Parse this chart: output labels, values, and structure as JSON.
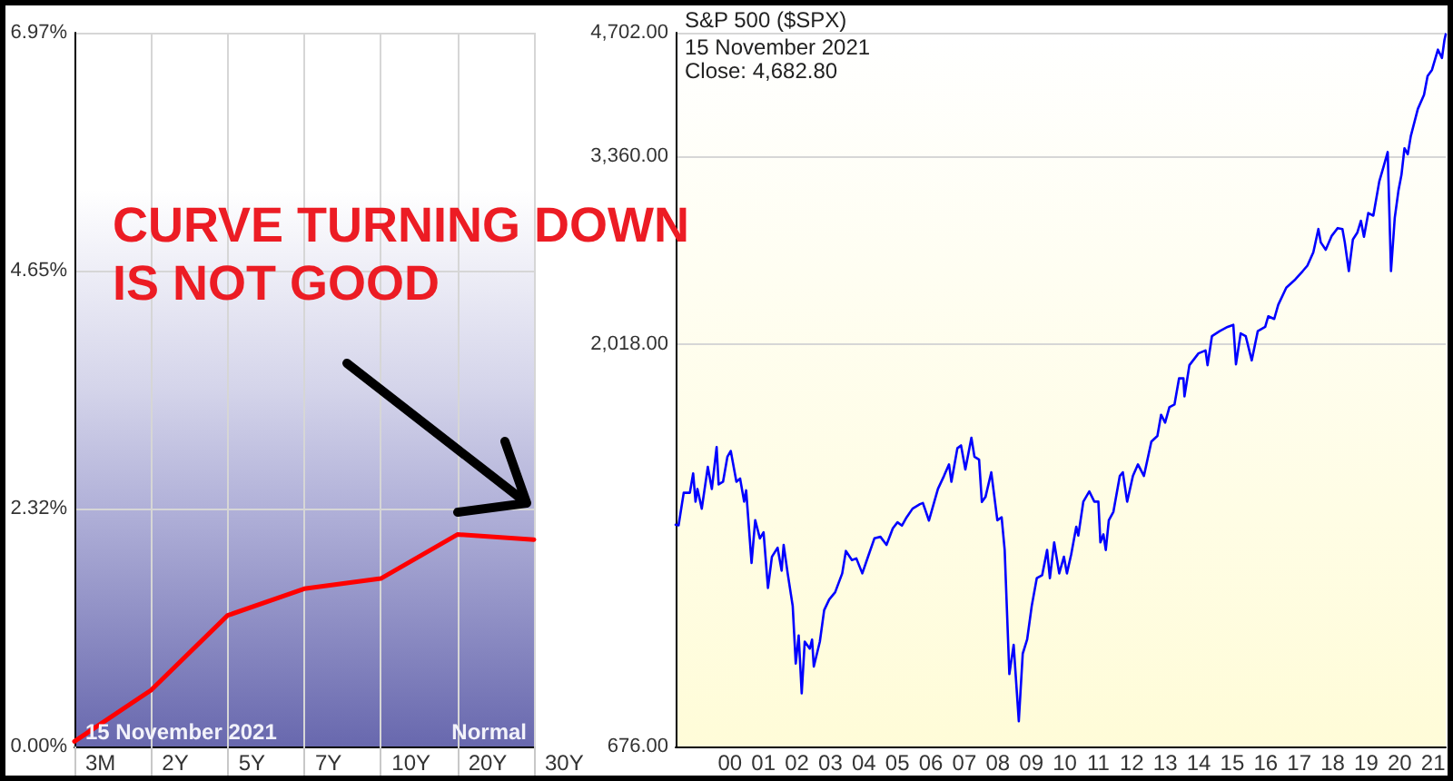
{
  "chart_data": [
    {
      "type": "line",
      "categories": [
        "3M",
        "2Y",
        "5Y",
        "7Y",
        "10Y",
        "20Y",
        "30Y"
      ],
      "series": [
        {
          "color": "#ff0000",
          "values": [
            0.05,
            0.55,
            1.28,
            1.54,
            1.64,
            2.07,
            2.02
          ]
        }
      ],
      "ylim": [
        0,
        6.97
      ],
      "yticks": [
        {
          "value": 0,
          "label": "0.00%"
        },
        {
          "value": 2.32,
          "label": "2.32%"
        },
        {
          "value": 4.65,
          "label": "4.65%"
        },
        {
          "value": 6.97,
          "label": "6.97%"
        }
      ],
      "grid": true,
      "marker": "none",
      "annotations": [
        "CURVE TURNING DOWN IS NOT GOOD",
        "15 November 2021",
        "Normal"
      ]
    },
    {
      "type": "line",
      "title": "S&P 500 ($SPX)",
      "annotations": [
        "15 November 2021",
        "Close: 4,682.80"
      ],
      "x": [
        "1998-11-16",
        "1998-12-18",
        "1999-02-12",
        "1999-04-20",
        "1999-05-26",
        "1999-06-21",
        "1999-07-12",
        "1999-08-28",
        "1999-11-02",
        "1999-12-16",
        "2000-02-06",
        "2000-02-28",
        "2000-04-16",
        "2000-06-03",
        "2000-07-09",
        "2000-09-09",
        "2000-10-19",
        "2000-12-02",
        "2000-12-24",
        "2001-02-21",
        "2001-04-02",
        "2001-05-23",
        "2001-07-02",
        "2001-08-19",
        "2001-10-01",
        "2001-12-02",
        "2002-01-15",
        "2002-02-06",
        "2002-03-22",
        "2002-05-16",
        "2002-06-18",
        "2002-07-20",
        "2002-08-22",
        "2002-09-24",
        "2002-11-18",
        "2002-12-13",
        "2003-01-01",
        "2003-03-08",
        "2003-04-24",
        "2003-06-18",
        "2003-08-22",
        "2003-11-07",
        "2003-12-17",
        "2004-02-21",
        "2004-04-09",
        "2004-06-13",
        "2004-08-18",
        "2004-10-23",
        "2004-12-28",
        "2005-03-04",
        "2005-05-12",
        "2005-07-02",
        "2005-08-19",
        "2005-10-09",
        "2005-12-13",
        "2006-03-04",
        "2006-04-05",
        "2006-06-10",
        "2006-09-16",
        "2006-11-21",
        "2007-01-15",
        "2007-02-10",
        "2007-04-16",
        "2007-05-26",
        "2007-07-12",
        "2007-09-16",
        "2007-10-19",
        "2007-12-09",
        "2008-01-08",
        "2008-02-17",
        "2008-04-20",
        "2008-06-25",
        "2008-08-11",
        "2008-09-13",
        "2008-11-03",
        "2008-12-20",
        "2009-02-14",
        "2009-03-29",
        "2009-05-16",
        "2009-07-05",
        "2009-08-29",
        "2009-10-27",
        "2009-12-20",
        "2010-01-19",
        "2010-03-07",
        "2010-05-01",
        "2010-06-21",
        "2010-07-24",
        "2010-09-09",
        "2010-11-03",
        "2010-11-25",
        "2011-01-19",
        "2011-03-25",
        "2011-05-19",
        "2011-07-02",
        "2011-07-24",
        "2011-08-26",
        "2011-09-21",
        "2011-10-24",
        "2011-12-13",
        "2012-02-21",
        "2012-03-25",
        "2012-05-11",
        "2012-07-13",
        "2012-09-06",
        "2012-11-10",
        "2013-01-30",
        "2013-04-06",
        "2013-05-16",
        "2013-06-29",
        "2013-08-15",
        "2013-10-09",
        "2013-11-28",
        "2014-01-15",
        "2014-01-26",
        "2014-03-21",
        "2014-06-28",
        "2014-09-13",
        "2014-10-05",
        "2014-11-22",
        "2015-02-14",
        "2015-05-12",
        "2015-07-13",
        "2015-08-11",
        "2015-10-01",
        "2015-11-25",
        "2016-01-30",
        "2016-04-05",
        "2016-06-25",
        "2016-07-28",
        "2016-10-01",
        "2016-11-14",
        "2017-02-10",
        "2017-05-19",
        "2017-08-08",
        "2017-09-28",
        "2017-12-02",
        "2018-01-26",
        "2018-02-21",
        "2018-04-16",
        "2018-06-21",
        "2018-08-25",
        "2018-10-15",
        "2018-11-10",
        "2018-12-24",
        "2019-02-06",
        "2019-03-26",
        "2019-05-05",
        "2019-06-07",
        "2019-07-24",
        "2019-09-17",
        "2019-11-21",
        "2020-01-08",
        "2020-02-21",
        "2020-03-28",
        "2020-05-08",
        "2020-06-17",
        "2020-07-20",
        "2020-08-22",
        "2020-09-27",
        "2020-10-30",
        "2021-01-15",
        "2021-03-23",
        "2021-05-01",
        "2021-06-18",
        "2021-08-22",
        "2021-10-05",
        "2021-11-01",
        "2021-11-15"
      ],
      "series": [
        {
          "color": "#0000ff",
          "values": [
            1235,
            1233,
            1347,
            1347,
            1420,
            1315,
            1361,
            1290,
            1445,
            1361,
            1525,
            1378,
            1388,
            1486,
            1509,
            1388,
            1400,
            1315,
            1356,
            1113,
            1250,
            1190,
            1210,
            1040,
            1132,
            1160,
            1090,
            1169,
            1082,
            990,
            847,
            914,
            781,
            899,
            882,
            904,
            840,
            899,
            979,
            1008,
            1028,
            1082,
            1150,
            1122,
            1127,
            1082,
            1135,
            1190,
            1195,
            1169,
            1223,
            1243,
            1232,
            1260,
            1290,
            1306,
            1310,
            1249,
            1361,
            1410,
            1455,
            1388,
            1520,
            1532,
            1435,
            1564,
            1486,
            1474,
            1314,
            1332,
            1424,
            1250,
            1260,
            1153,
            823,
            891,
            724,
            870,
            904,
            990,
            1068,
            1077,
            1153,
            1068,
            1177,
            1082,
            1132,
            1082,
            1140,
            1228,
            1199,
            1315,
            1352,
            1315,
            1315,
            1177,
            1203,
            1153,
            1250,
            1279,
            1410,
            1424,
            1315,
            1410,
            1455,
            1410,
            1548,
            1572,
            1665,
            1630,
            1700,
            1712,
            1838,
            1838,
            1750,
            1905,
            1967,
            1983,
            1905,
            2062,
            2090,
            2114,
            2126,
            1910,
            2077,
            2062,
            1930,
            2090,
            2114,
            2176,
            2160,
            2245,
            2352,
            2405,
            2460,
            2497,
            2589,
            2758,
            2660,
            2607,
            2708,
            2765,
            2758,
            2660,
            2460,
            2680,
            2730,
            2820,
            2700,
            2880,
            2860,
            3138,
            3270,
            3400,
            2460,
            2843,
            3060,
            3195,
            3435,
            3380,
            3550,
            3823,
            3970,
            4180,
            4250,
            4490,
            4390,
            4610,
            4682.8
          ]
        }
      ],
      "xlim": [
        "1998-11-16",
        "2021-11-15"
      ],
      "xticks": [
        {
          "value": "2000-07-01",
          "label": "00"
        },
        {
          "value": "2001-07-01",
          "label": "01"
        },
        {
          "value": "2002-07-01",
          "label": "02"
        },
        {
          "value": "2003-07-01",
          "label": "03"
        },
        {
          "value": "2004-07-01",
          "label": "04"
        },
        {
          "value": "2005-07-01",
          "label": "05"
        },
        {
          "value": "2006-07-01",
          "label": "06"
        },
        {
          "value": "2007-07-01",
          "label": "07"
        },
        {
          "value": "2008-07-01",
          "label": "08"
        },
        {
          "value": "2009-07-01",
          "label": "09"
        },
        {
          "value": "2010-07-01",
          "label": "10"
        },
        {
          "value": "2011-07-01",
          "label": "11"
        },
        {
          "value": "2012-07-01",
          "label": "12"
        },
        {
          "value": "2013-07-01",
          "label": "13"
        },
        {
          "value": "2014-07-01",
          "label": "14"
        },
        {
          "value": "2015-07-01",
          "label": "15"
        },
        {
          "value": "2016-07-01",
          "label": "16"
        },
        {
          "value": "2017-07-01",
          "label": "17"
        },
        {
          "value": "2018-07-01",
          "label": "18"
        },
        {
          "value": "2019-07-01",
          "label": "19"
        },
        {
          "value": "2020-07-01",
          "label": "20"
        },
        {
          "value": "2021-07-01",
          "label": "21"
        }
      ],
      "ylim": [
        676,
        4702
      ],
      "yticks": [
        {
          "value": 676,
          "label": "676.00"
        },
        {
          "value": 2018,
          "label": "2,018.00"
        },
        {
          "value": 3360,
          "label": "3,360.00"
        },
        {
          "value": 4702,
          "label": "4,702.00"
        }
      ],
      "log": "y",
      "grid": "y",
      "marker": "none"
    }
  ]
}
